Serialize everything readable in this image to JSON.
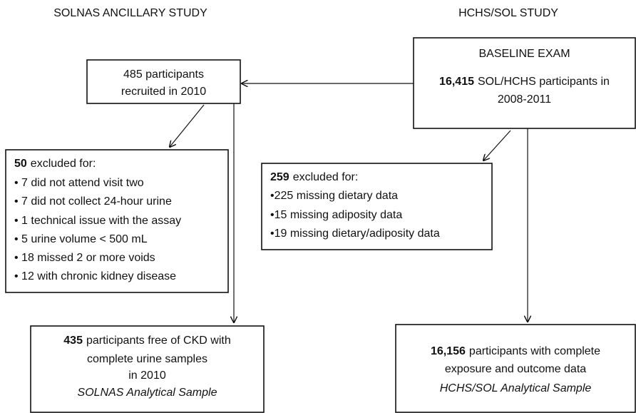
{
  "columns": {
    "left": "SOLNAS ANCILLARY STUDY",
    "right": "HCHS/SOL STUDY"
  },
  "nodes": [
    {
      "lines": [
        {
          "text": "485 participants"
        },
        {
          "text": "recruited in 2010"
        }
      ]
    },
    {
      "lines": [
        {
          "text": "BASELINE EXAM"
        },
        {
          "bold": "16,415",
          "text": "SOL/HCHS participants in"
        },
        {
          "text": "2008-2011"
        }
      ]
    },
    {
      "lines": [
        {
          "bold": "50",
          "text": "excluded for:"
        },
        {
          "text": "• 7 did not attend visit two"
        },
        {
          "text": "• 7 did not collect 24-hour urine"
        },
        {
          "text": "• 1 technical issue with the assay"
        },
        {
          "text": "• 5 urine volume < 500 mL"
        },
        {
          "text": "• 18 missed 2 or more voids"
        },
        {
          "text": "• 12 with chronic kidney disease"
        }
      ]
    },
    {
      "lines": [
        {
          "bold": "259",
          "text": "excluded for:"
        },
        {
          "text": "•225 missing dietary data"
        },
        {
          "text": "•15 missing adiposity data"
        },
        {
          "text": "•19 missing dietary/adiposity data"
        }
      ]
    },
    {
      "lines": [
        {
          "bold": "435",
          "text": "participants free of CKD with"
        },
        {
          "text": "complete urine samples"
        },
        {
          "text": "in 2010"
        },
        {
          "text": "SOLNAS Analytical Sample"
        }
      ]
    },
    {
      "lines": [
        {
          "bold": "16,156",
          "text": "participants with complete"
        },
        {
          "text": "exposure and outcome data"
        },
        {
          "text": "HCHS/SOL Analytical Sample"
        }
      ]
    }
  ]
}
